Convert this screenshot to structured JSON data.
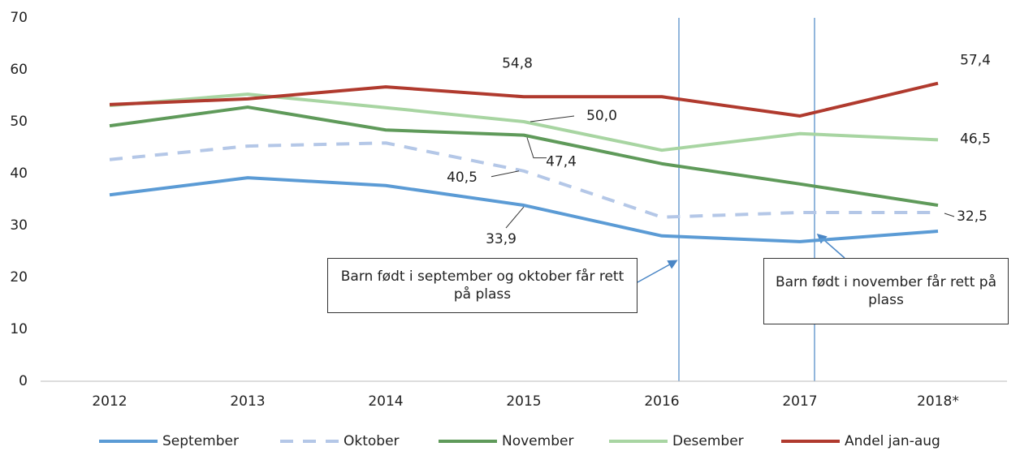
{
  "chart_data": {
    "type": "line",
    "categories": [
      "2012",
      "2013",
      "2014",
      "2015",
      "2016",
      "2017",
      "2018*"
    ],
    "ylim": [
      0,
      70
    ],
    "yticks": [
      0,
      10,
      20,
      30,
      40,
      50,
      60,
      70
    ],
    "grid": false,
    "series": [
      {
        "name": "September",
        "color": "#5b9bd5",
        "dash": false,
        "values": [
          35.9,
          39.2,
          37.7,
          33.9,
          28.0,
          26.9,
          28.9
        ],
        "value_labels": [
          null,
          null,
          null,
          "33,9",
          null,
          null,
          null
        ]
      },
      {
        "name": "Oktober",
        "color": "#b4c7e7",
        "dash": true,
        "values": [
          42.7,
          45.3,
          45.9,
          40.5,
          31.6,
          32.5,
          32.5
        ],
        "value_labels": [
          null,
          null,
          null,
          "40,5",
          null,
          null,
          "32,5"
        ]
      },
      {
        "name": "November",
        "color": "#5f9a5a",
        "dash": false,
        "values": [
          49.2,
          52.8,
          48.4,
          47.4,
          41.9,
          38.0,
          33.9
        ],
        "value_labels": [
          null,
          null,
          null,
          "47,4",
          null,
          null,
          null
        ]
      },
      {
        "name": "Desember",
        "color": "#a8d5a2",
        "dash": false,
        "values": [
          53.1,
          55.3,
          52.7,
          50.0,
          44.5,
          47.7,
          46.5
        ],
        "value_labels": [
          null,
          null,
          null,
          "50,0",
          null,
          null,
          "46,5"
        ]
      },
      {
        "name": "Andel jan-aug",
        "color": "#b03a2e",
        "dash": false,
        "values": [
          53.3,
          54.4,
          56.7,
          54.8,
          54.8,
          51.1,
          57.4
        ],
        "value_labels": [
          null,
          null,
          null,
          "54,8",
          null,
          null,
          "57,4"
        ]
      }
    ],
    "annotations": [
      "Barn født i september og oktober får rett på plass",
      "Barn født i november får rett på plass"
    ],
    "legend": "bottom"
  }
}
